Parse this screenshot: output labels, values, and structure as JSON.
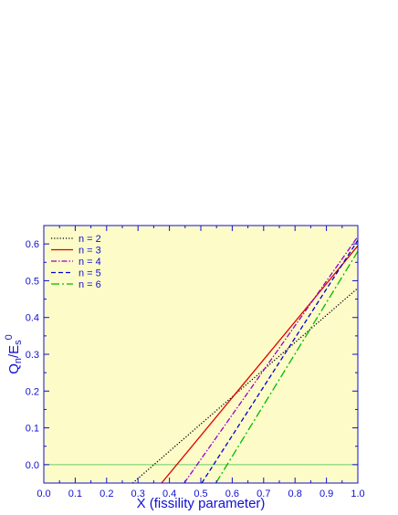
{
  "chart_data": {
    "type": "line",
    "xlabel": "X (fissility parameter)",
    "ylabel_main": "Q",
    "ylabel_sub": "n",
    "ylabel_mid": "/E",
    "ylabel_sub2": "s",
    "ylabel_sup": "0",
    "xlim": [
      0.0,
      1.0
    ],
    "ylim": [
      -0.05,
      0.65
    ],
    "xticks": [
      "0.0",
      "0.1",
      "0.2",
      "0.3",
      "0.4",
      "0.5",
      "0.6",
      "0.7",
      "0.8",
      "0.9",
      "1.0"
    ],
    "yticks": [
      "0.0",
      "0.1",
      "0.2",
      "0.3",
      "0.4",
      "0.5",
      "0.6"
    ],
    "legend_position": "top-left",
    "grid": false,
    "background": "#fdfbc8",
    "axis_color": "#1010d0",
    "zero_line_color": "#66cc66",
    "series": [
      {
        "name": "n = 2",
        "color": "#000000",
        "dash": "dot",
        "x": [
          0.283,
          1.0
        ],
        "y": [
          -0.05,
          0.48
        ]
      },
      {
        "name": "n = 3",
        "color": "#dd0000",
        "dash": "solid",
        "x": [
          0.375,
          1.0
        ],
        "y": [
          -0.05,
          0.595
        ]
      },
      {
        "name": "n = 4",
        "color": "#9900cc",
        "dash": "dashdot",
        "x": [
          0.447,
          1.0
        ],
        "y": [
          -0.05,
          0.62
        ]
      },
      {
        "name": "n = 5",
        "color": "#0000cc",
        "dash": "dash",
        "x": [
          0.503,
          1.0
        ],
        "y": [
          -0.05,
          0.61
        ]
      },
      {
        "name": "n = 6",
        "color": "#00bb00",
        "dash": "longdash",
        "x": [
          0.548,
          1.0
        ],
        "y": [
          -0.05,
          0.58
        ]
      }
    ]
  }
}
